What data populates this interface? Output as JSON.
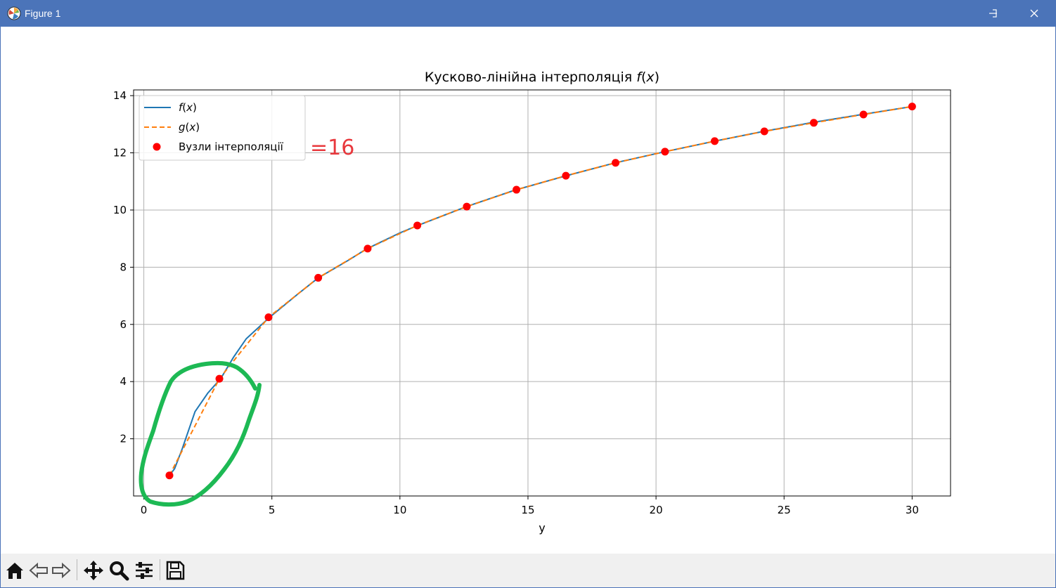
{
  "window": {
    "title": "Figure 1",
    "app_icon": "matplotlib-logo-icon",
    "controls": [
      "minimize-icon",
      "maximize-icon",
      "close-icon"
    ]
  },
  "toolbar": {
    "buttons": [
      "home-icon",
      "back-arrow-icon",
      "forward-arrow-icon",
      "pan-move-icon",
      "zoom-magnifier-icon",
      "configure-subplots-icon",
      "save-floppy-icon"
    ]
  },
  "annotation": {
    "text": "=16",
    "text_color": "#e8383d",
    "circle_color": "#1db954"
  },
  "chart_data": {
    "type": "line",
    "title": "Кусково-лінійна інтерполяція",
    "title_math": "f(x)",
    "xlabel": "y",
    "ylabel": "",
    "xlim": [
      -0.4,
      31.5
    ],
    "ylim": [
      0,
      14.2
    ],
    "xticks": [
      0,
      5,
      10,
      15,
      20,
      25,
      30
    ],
    "yticks": [
      2,
      4,
      6,
      8,
      10,
      12,
      14
    ],
    "grid": true,
    "legend": {
      "position": "upper-left",
      "entries": [
        {
          "label": "f",
          "arg": "x",
          "style": "solid-line"
        },
        {
          "label": "g",
          "arg": "x",
          "style": "dashed-line"
        },
        {
          "label": "Вузли інтерполяції",
          "style": "marker"
        }
      ]
    },
    "series": [
      {
        "name": "f(x)",
        "color": "#1f77b4",
        "style": "solid",
        "x": [
          1.0,
          1.2,
          1.5,
          2.0,
          2.5,
          3.0,
          3.5,
          4.0,
          4.9,
          6.0,
          6.8,
          8.0,
          8.7,
          10.0,
          10.7,
          12.6,
          14.5,
          16.5,
          18.4,
          20.3,
          22.3,
          24.2,
          26.1,
          28.1,
          30.0
        ],
        "y": [
          0.72,
          0.95,
          1.65,
          2.95,
          3.6,
          4.1,
          4.85,
          5.5,
          6.24,
          7.05,
          7.62,
          8.25,
          8.64,
          9.2,
          9.46,
          10.12,
          10.7,
          11.2,
          11.65,
          12.03,
          12.41,
          12.75,
          13.06,
          13.35,
          13.62
        ]
      },
      {
        "name": "g(x)",
        "color": "#ff7f0e",
        "style": "dashed",
        "x": [
          1.0,
          2.95,
          4.87,
          6.81,
          8.74,
          10.68,
          12.61,
          14.55,
          16.48,
          18.42,
          20.35,
          22.29,
          24.23,
          26.16,
          28.1,
          30.0
        ],
        "y": [
          0.72,
          4.1,
          6.25,
          7.63,
          8.65,
          9.46,
          10.12,
          10.71,
          11.2,
          11.65,
          12.04,
          12.41,
          12.75,
          13.05,
          13.34,
          13.62
        ]
      },
      {
        "name": "Вузли інтерполяції",
        "color": "#ff0000",
        "style": "markers",
        "x": [
          1.0,
          2.95,
          4.87,
          6.81,
          8.74,
          10.68,
          12.61,
          14.55,
          16.48,
          18.42,
          20.35,
          22.29,
          24.23,
          26.16,
          28.1,
          30.0
        ],
        "y": [
          0.72,
          4.1,
          6.25,
          7.63,
          8.65,
          9.46,
          10.12,
          10.71,
          11.2,
          11.65,
          12.04,
          12.41,
          12.75,
          13.05,
          13.34,
          13.62
        ]
      }
    ]
  }
}
